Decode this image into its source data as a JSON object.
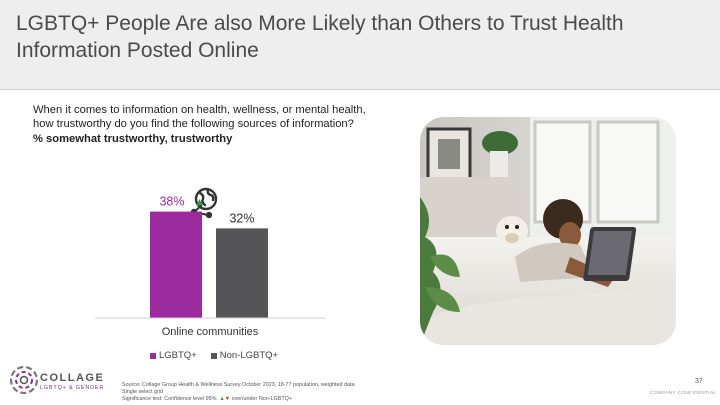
{
  "slide": {
    "title_line1": "LGBTQ+ People Are also More Likely than Others to Trust Health",
    "title_line2": "Information Posted Online",
    "question_line1": "When it comes to information on health, wellness, or mental health,",
    "question_line2": "how trustworthy do you find the following sources of information?",
    "question_bold": "% somewhat trustworthy, trustworthy",
    "page_number": "37",
    "confidential": "COMPANY CONFIDENTIAL"
  },
  "chart_data": {
    "type": "bar",
    "categories": [
      "Online communities"
    ],
    "series": [
      {
        "name": "LGBTQ+",
        "values": [
          38
        ],
        "labels": [
          "38%"
        ],
        "color": "#9b2a9e",
        "significant_higher": true
      },
      {
        "name": "Non-LGBTQ+",
        "values": [
          32
        ],
        "labels": [
          "32%"
        ],
        "color": "#555558"
      }
    ],
    "ylim": [
      0,
      50
    ],
    "legend_position": "bottom",
    "grid": false,
    "significance_marker": "▲",
    "icon": "globe-network-icon"
  },
  "legend": {
    "item1": "LGBTQ+",
    "item2": "Non-LGBTQ+"
  },
  "footer": {
    "source": "Source: Collage Group Health & Wellness Survey October 2023, 18-77 population, weighted data",
    "grid_note": "Single select grid",
    "sig_prefix": "Significance test: Confidence level 95%. ",
    "sig_up": "▲",
    "sig_dn": "▼",
    "sig_suffix": " over/under Non-LGBTQ+"
  },
  "logo": {
    "name": "COLLAGE",
    "subtitle": "LGBTQ+ & GENDER"
  },
  "colors": {
    "accent": "#9b2a9e",
    "comparison": "#555558",
    "title_band": "#eeeeee",
    "sig_up": "#2e9a3e",
    "sig_dn": "#c0392b"
  }
}
